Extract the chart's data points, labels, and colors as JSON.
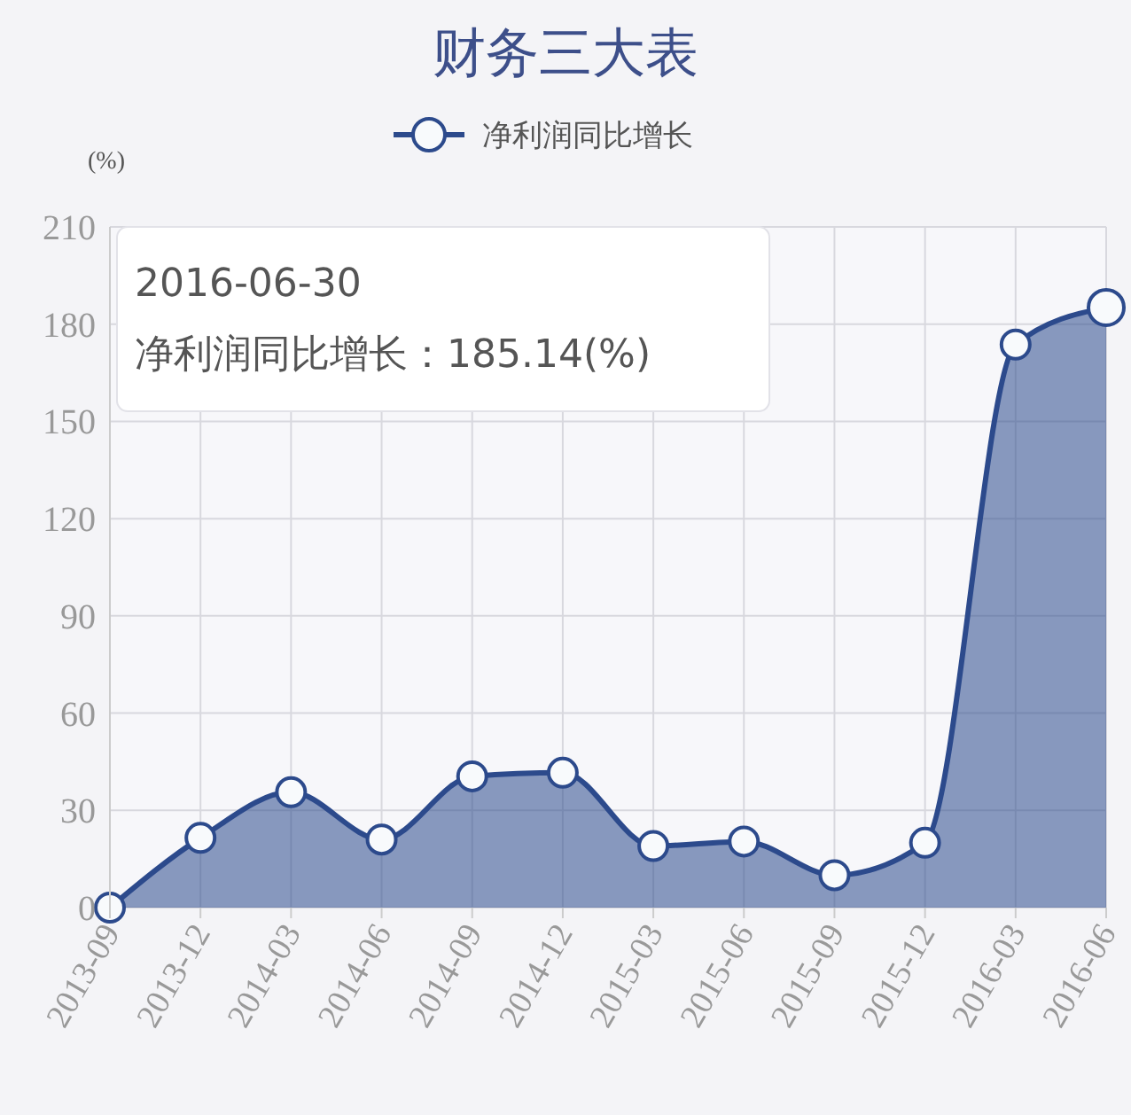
{
  "chart_data": {
    "type": "area",
    "title": "财务三大表",
    "ylabel": "(%)",
    "categories": [
      "2013-09",
      "2013-12",
      "2014-03",
      "2014-06",
      "2014-09",
      "2014-12",
      "2015-03",
      "2015-06",
      "2015-09",
      "2015-12",
      "2016-03",
      "2016-06"
    ],
    "series": [
      {
        "name": "净利润同比增长",
        "color": "#2c4a8c",
        "values": [
          0,
          21.5,
          35.6,
          21,
          40.5,
          41.6,
          19,
          20.4,
          10,
          20,
          173.7,
          185.14
        ]
      }
    ],
    "ylim": [
      0,
      210
    ],
    "yticks": [
      0,
      30,
      60,
      90,
      120,
      150,
      180,
      210
    ],
    "grid": true,
    "legend": "top",
    "marker": "circle",
    "annotations": [
      "2016-06-30\n净利润同比增长：185.14(%)"
    ]
  }
}
